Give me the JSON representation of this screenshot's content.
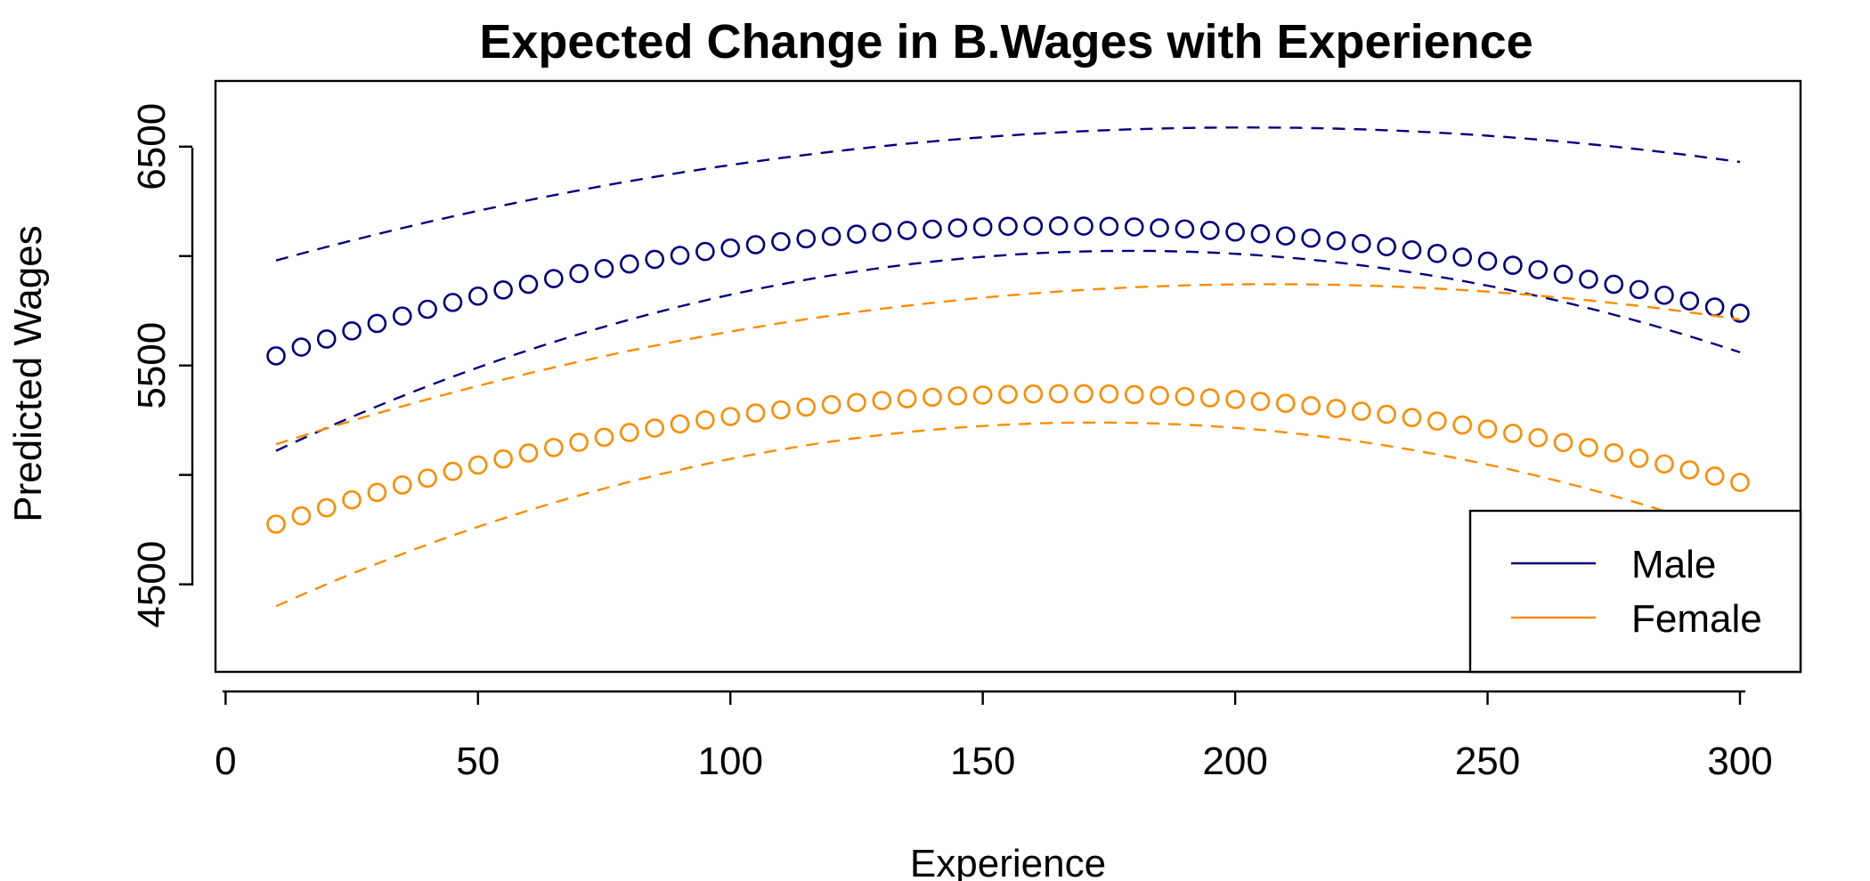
{
  "chart_data": {
    "type": "scatter",
    "title": "Expected Change in B.Wages with Experience",
    "xlabel": "Experience",
    "ylabel": "Predicted Wages",
    "xlim": [
      -2,
      312
    ],
    "ylim": [
      4100,
      6800
    ],
    "x_ticks": [
      0,
      50,
      100,
      150,
      200,
      250,
      300
    ],
    "y_ticks": [
      4500,
      5500,
      6500
    ],
    "y_minor_ticks": [
      5000,
      6000
    ],
    "x": [
      10,
      15,
      20,
      25,
      30,
      35,
      40,
      45,
      50,
      55,
      60,
      65,
      70,
      75,
      80,
      85,
      90,
      95,
      100,
      105,
      110,
      115,
      120,
      125,
      130,
      135,
      140,
      145,
      150,
      155,
      160,
      165,
      170,
      175,
      180,
      185,
      190,
      195,
      200,
      205,
      210,
      215,
      220,
      225,
      230,
      235,
      240,
      245,
      250,
      255,
      260,
      265,
      270,
      275,
      280,
      285,
      290,
      295,
      300
    ],
    "series": [
      {
        "name": "Male",
        "color": "#000080",
        "values": [
          5544,
          5584,
          5621,
          5658,
          5692,
          5726,
          5757,
          5788,
          5817,
          5845,
          5871,
          5897,
          5920,
          5943,
          5964,
          5985,
          6003,
          6021,
          6037,
          6052,
          6066,
          6079,
          6090,
          6100,
          6109,
          6117,
          6123,
          6129,
          6133,
          6136,
          6137,
          6138,
          6137,
          6136,
          6133,
          6129,
          6124,
          6117,
          6110,
          6102,
          6092,
          6082,
          6070,
          6057,
          6043,
          6028,
          6012,
          5995,
          5977,
          5958,
          5938,
          5917,
          5894,
          5871,
          5847,
          5821,
          5795,
          5767,
          5739
        ],
        "upper": [
          5980,
          6551,
          6430
        ],
        "lower": [
          5110,
          6005,
          5560
        ]
      },
      {
        "name": "Female",
        "color": "#FF8C00",
        "values": [
          4775,
          4813,
          4850,
          4886,
          4920,
          4954,
          4985,
          5016,
          5045,
          5073,
          5100,
          5125,
          5149,
          5172,
          5194,
          5214,
          5233,
          5251,
          5267,
          5283,
          5297,
          5310,
          5321,
          5331,
          5340,
          5348,
          5355,
          5361,
          5365,
          5368,
          5370,
          5371,
          5371,
          5370,
          5367,
          5363,
          5358,
          5352,
          5345,
          5336,
          5327,
          5316,
          5304,
          5291,
          5277,
          5262,
          5246,
          5228,
          5210,
          5190,
          5170,
          5148,
          5125,
          5101,
          5076,
          5050,
          5023,
          4995,
          4966
        ],
        "upper": [
          5140,
          5820,
          5710
        ],
        "lower": [
          4400,
          5230,
          4720
        ]
      }
    ],
    "legend": {
      "position": "bottom-right",
      "entries": [
        {
          "label": "Male",
          "color": "#000080"
        },
        {
          "label": "Female",
          "color": "#FF8C00"
        }
      ]
    },
    "grid": false
  }
}
